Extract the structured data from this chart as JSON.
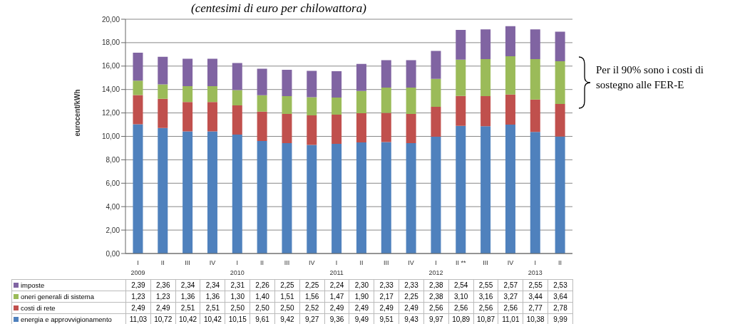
{
  "chart_data": {
    "type": "bar",
    "stacked": true,
    "subtitle": "(centesimi di euro per chilowattora)",
    "ylabel": "eurocent/kWh",
    "categories": [
      "I\n2009",
      "II",
      "III",
      "IV",
      "I\n2010",
      "II",
      "III",
      "IV",
      "I\n2011",
      "II",
      "III",
      "IV",
      "I\n2012",
      "II **",
      "III",
      "IV",
      "I\n2013",
      "II"
    ],
    "series": [
      {
        "name": "energia e approvvigionamento",
        "color": "#4f81bd",
        "values": [
          11.03,
          10.72,
          10.42,
          10.42,
          10.15,
          9.61,
          9.42,
          9.27,
          9.36,
          9.49,
          9.51,
          9.43,
          9.97,
          10.89,
          10.87,
          11.01,
          10.38,
          9.99
        ],
        "value_labels": [
          "11,03",
          "10,72",
          "10,42",
          "10,42",
          "10,15",
          "9,61",
          "9,42",
          "9,27",
          "9,36",
          "9,49",
          "9,51",
          "9,43",
          "9,97",
          "10,89",
          "10,87",
          "11,01",
          "10,38",
          "9,99"
        ]
      },
      {
        "name": "costi di rete",
        "color": "#c0504d",
        "values": [
          2.49,
          2.49,
          2.51,
          2.51,
          2.5,
          2.5,
          2.5,
          2.52,
          2.49,
          2.49,
          2.49,
          2.49,
          2.56,
          2.56,
          2.56,
          2.56,
          2.77,
          2.78
        ],
        "value_labels": [
          "2,49",
          "2,49",
          "2,51",
          "2,51",
          "2,50",
          "2,50",
          "2,50",
          "2,52",
          "2,49",
          "2,49",
          "2,49",
          "2,49",
          "2,56",
          "2,56",
          "2,56",
          "2,56",
          "2,77",
          "2,78"
        ]
      },
      {
        "name": "oneri generali di sistema",
        "color": "#9bbb59",
        "values": [
          1.23,
          1.23,
          1.36,
          1.36,
          1.3,
          1.4,
          1.51,
          1.56,
          1.47,
          1.9,
          2.17,
          2.25,
          2.38,
          3.1,
          3.16,
          3.27,
          3.44,
          3.64
        ],
        "value_labels": [
          "1,23",
          "1,23",
          "1,36",
          "1,36",
          "1,30",
          "1,40",
          "1,51",
          "1,56",
          "1,47",
          "1,90",
          "2,17",
          "2,25",
          "2,38",
          "3,10",
          "3,16",
          "3,27",
          "3,44",
          "3,64"
        ]
      },
      {
        "name": "imposte",
        "color": "#8064a2",
        "values": [
          2.39,
          2.36,
          2.34,
          2.34,
          2.31,
          2.26,
          2.25,
          2.25,
          2.24,
          2.3,
          2.33,
          2.33,
          2.38,
          2.54,
          2.55,
          2.57,
          2.55,
          2.53
        ],
        "value_labels": [
          "2,39",
          "2,36",
          "2,34",
          "2,34",
          "2,31",
          "2,26",
          "2,25",
          "2,25",
          "2,24",
          "2,30",
          "2,33",
          "2,33",
          "2,38",
          "2,54",
          "2,55",
          "2,57",
          "2,55",
          "2,53"
        ]
      }
    ],
    "ylim": [
      0,
      20
    ],
    "yticks": [
      {
        "value": 0,
        "label": "0,00"
      },
      {
        "value": 2,
        "label": "2,00"
      },
      {
        "value": 4,
        "label": "4,00"
      },
      {
        "value": 6,
        "label": "6,00"
      },
      {
        "value": 8,
        "label": "8,00"
      },
      {
        "value": 10,
        "label": "10,00"
      },
      {
        "value": 12,
        "label": "12,00"
      },
      {
        "value": 14,
        "label": "14,00"
      },
      {
        "value": 16,
        "label": "16,00"
      },
      {
        "value": 18,
        "label": "18,00"
      },
      {
        "value": 20,
        "label": "20,00"
      }
    ],
    "grid": "y",
    "legend": "bottom",
    "annotations": [
      "Per il 90% sono i costi di sostegno alle FER-E"
    ]
  }
}
